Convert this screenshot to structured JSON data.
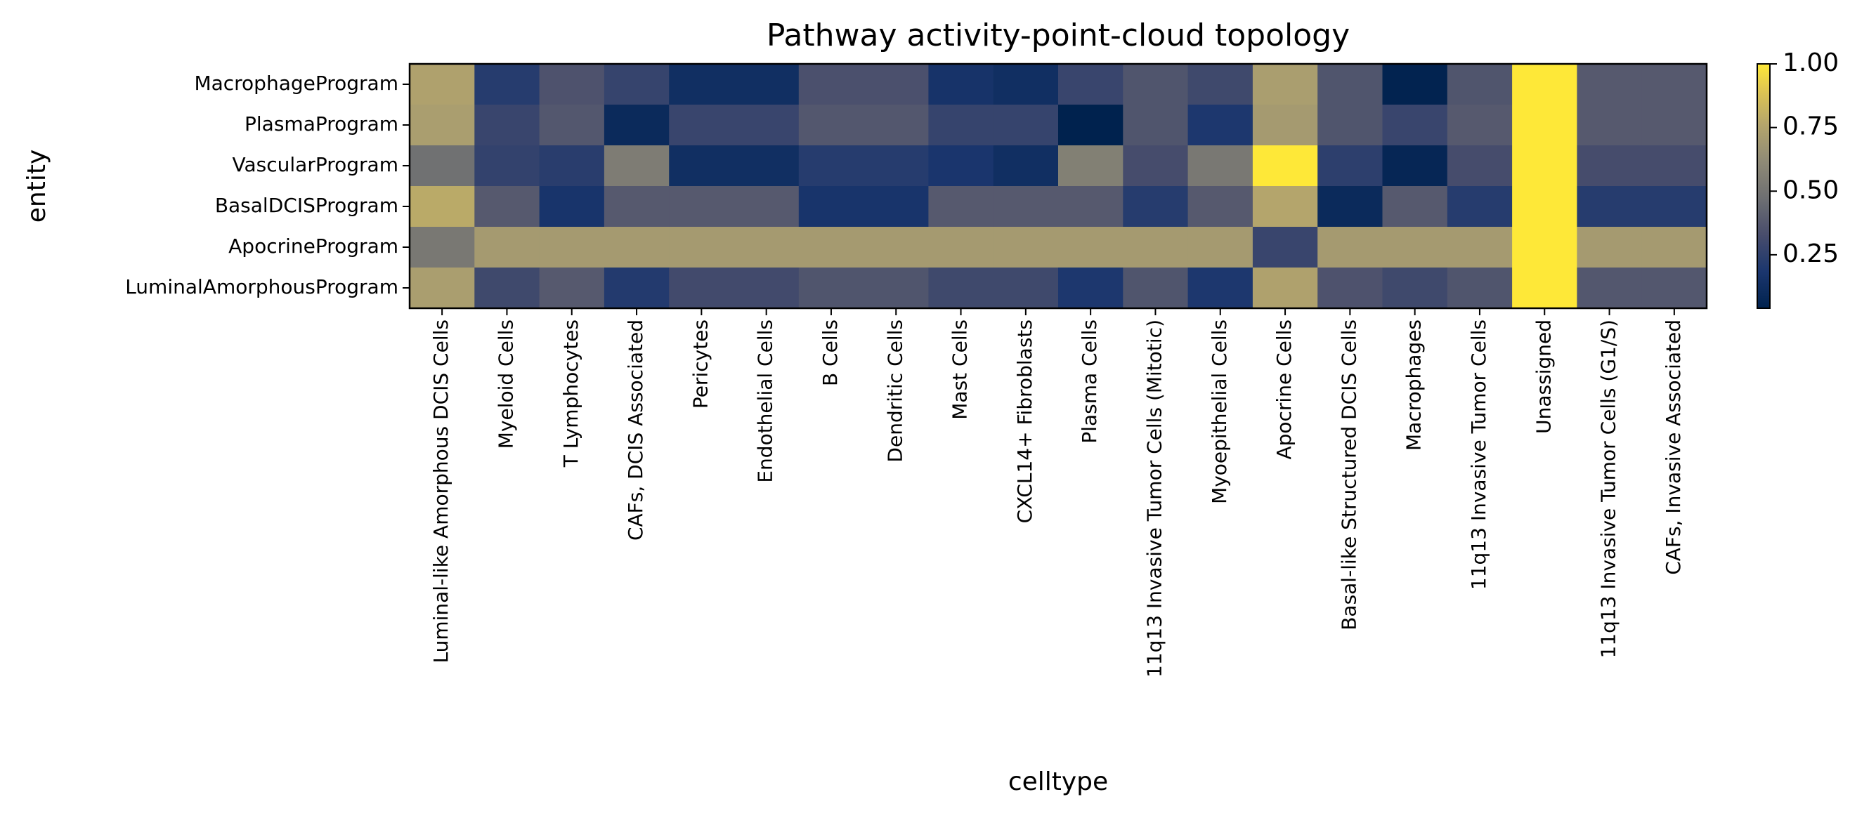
{
  "chart_data": {
    "type": "heatmap",
    "title": "Pathway activity-point-cloud topology",
    "xlabel": "celltype",
    "ylabel": "entity",
    "colormap": "cividis",
    "colorbar": {
      "min": 0.04,
      "max": 1.0,
      "ticks": [
        0.25,
        0.5,
        0.75,
        1.0
      ],
      "tick_labels": [
        "0.25",
        "0.50",
        "0.75",
        "1.00"
      ]
    },
    "rows": [
      "MacrophageProgram",
      "PlasmaProgram",
      "VascularProgram",
      "BasalDCISProgram",
      "ApocrineProgram",
      "LuminalAmorphousProgram"
    ],
    "columns": [
      "Luminal-like Amorphous DCIS Cells",
      "Myeloid Cells",
      "T Lymphocytes",
      "CAFs, DCIS Associated",
      "Pericytes",
      "Endothelial Cells",
      "B Cells",
      "Dendritic Cells",
      "Mast Cells",
      "CXCL14+ Fibroblasts",
      "Plasma Cells",
      "11q13 Invasive Tumor Cells (Mitotic)",
      "Myoepithelial Cells",
      "Apocrine Cells",
      "Basal-like Structured DCIS Cells",
      "Macrophages",
      "11q13 Invasive Tumor Cells",
      "Unassigned",
      "11q13 Invasive Tumor Cells (G1/S)",
      "CAFs, Invasive Associated"
    ],
    "values": [
      [
        0.74,
        0.22,
        0.35,
        0.27,
        0.13,
        0.13,
        0.34,
        0.34,
        0.16,
        0.13,
        0.28,
        0.36,
        0.3,
        0.72,
        0.36,
        0.05,
        0.36,
        1.0,
        0.38,
        0.38
      ],
      [
        0.72,
        0.28,
        0.37,
        0.1,
        0.28,
        0.28,
        0.37,
        0.37,
        0.27,
        0.27,
        0.04,
        0.36,
        0.19,
        0.7,
        0.36,
        0.28,
        0.38,
        1.0,
        0.38,
        0.38
      ],
      [
        0.48,
        0.26,
        0.23,
        0.54,
        0.13,
        0.13,
        0.22,
        0.22,
        0.18,
        0.13,
        0.56,
        0.32,
        0.52,
        1.0,
        0.24,
        0.07,
        0.32,
        1.0,
        0.32,
        0.32
      ],
      [
        0.78,
        0.38,
        0.17,
        0.38,
        0.38,
        0.38,
        0.17,
        0.17,
        0.38,
        0.38,
        0.38,
        0.22,
        0.38,
        0.76,
        0.1,
        0.38,
        0.22,
        1.0,
        0.22,
        0.22
      ],
      [
        0.52,
        0.7,
        0.7,
        0.7,
        0.7,
        0.7,
        0.7,
        0.7,
        0.7,
        0.7,
        0.7,
        0.7,
        0.7,
        0.28,
        0.7,
        0.7,
        0.7,
        1.0,
        0.7,
        0.7
      ],
      [
        0.72,
        0.3,
        0.38,
        0.21,
        0.31,
        0.31,
        0.36,
        0.36,
        0.3,
        0.3,
        0.19,
        0.36,
        0.19,
        0.74,
        0.35,
        0.3,
        0.36,
        1.0,
        0.37,
        0.37
      ]
    ]
  }
}
